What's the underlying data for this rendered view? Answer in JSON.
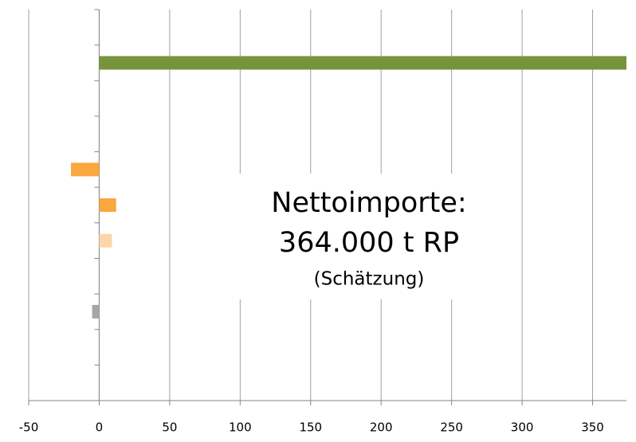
{
  "chart_data": {
    "type": "bar",
    "orientation": "horizontal",
    "categories": [
      null,
      null,
      null,
      null,
      null,
      null,
      null,
      null,
      null,
      null,
      null
    ],
    "values": [
      null,
      374,
      null,
      null,
      -20,
      12,
      9,
      null,
      -5,
      null,
      null
    ],
    "colors": [
      null,
      "#77933c",
      null,
      null,
      "#f9a73e",
      "#f9a73e",
      "#fcd5a8",
      null,
      "#a6a6a6",
      null,
      null
    ],
    "xlim": [
      -50,
      374
    ],
    "xticks": [
      -50,
      0,
      50,
      100,
      150,
      200,
      250,
      300,
      350
    ],
    "grid": true,
    "annotation": [
      "Nettoimporte:",
      "364.000 t RP",
      "(Schätzung)"
    ]
  }
}
